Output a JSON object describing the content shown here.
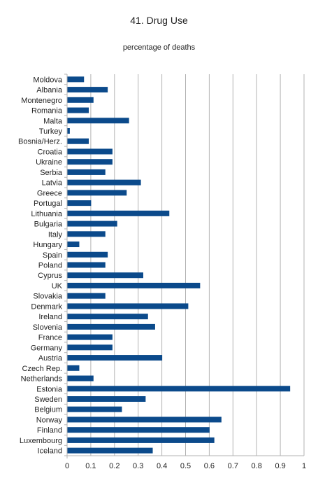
{
  "chart_data": {
    "type": "bar",
    "orientation": "horizontal",
    "title": "41. Drug Use",
    "subtitle": "percentage of deaths",
    "xlabel": "",
    "ylabel": "",
    "xlim": [
      0,
      1
    ],
    "xticks": [
      "0",
      "0.1",
      "0.2",
      "0.3",
      "0.4",
      "0.5",
      "0.6",
      "0.7",
      "0.8",
      "0.9",
      "1"
    ],
    "grid": true,
    "legend": "none",
    "bar_color": "#0b4a8b",
    "grid_color": "#b3b3b3",
    "categories": [
      "Moldova",
      "Albania",
      "Montenegro",
      "Romania",
      "Malta",
      "Turkey",
      "Bosnia/Herz.",
      "Croatia",
      "Ukraine",
      "Serbia",
      "Latvia",
      "Greece",
      "Portugal",
      "Lithuania",
      "Bulgaria",
      "Italy",
      "Hungary",
      "Spain",
      "Poland",
      "Cyprus",
      "UK",
      "Slovakia",
      "Denmark",
      "Ireland",
      "Slovenia",
      "France",
      "Germany",
      "Austria",
      "Czech Rep.",
      "Netherlands",
      "Estonia",
      "Sweden",
      "Belgium",
      "Norway",
      "Finland",
      "Luxembourg",
      "Iceland"
    ],
    "values": [
      0.07,
      0.17,
      0.11,
      0.09,
      0.26,
      0.01,
      0.09,
      0.19,
      0.19,
      0.16,
      0.31,
      0.25,
      0.1,
      0.43,
      0.21,
      0.16,
      0.05,
      0.17,
      0.16,
      0.32,
      0.56,
      0.16,
      0.51,
      0.34,
      0.37,
      0.19,
      0.19,
      0.4,
      0.05,
      0.11,
      0.94,
      0.33,
      0.23,
      0.65,
      0.6,
      0.62,
      0.36
    ]
  }
}
